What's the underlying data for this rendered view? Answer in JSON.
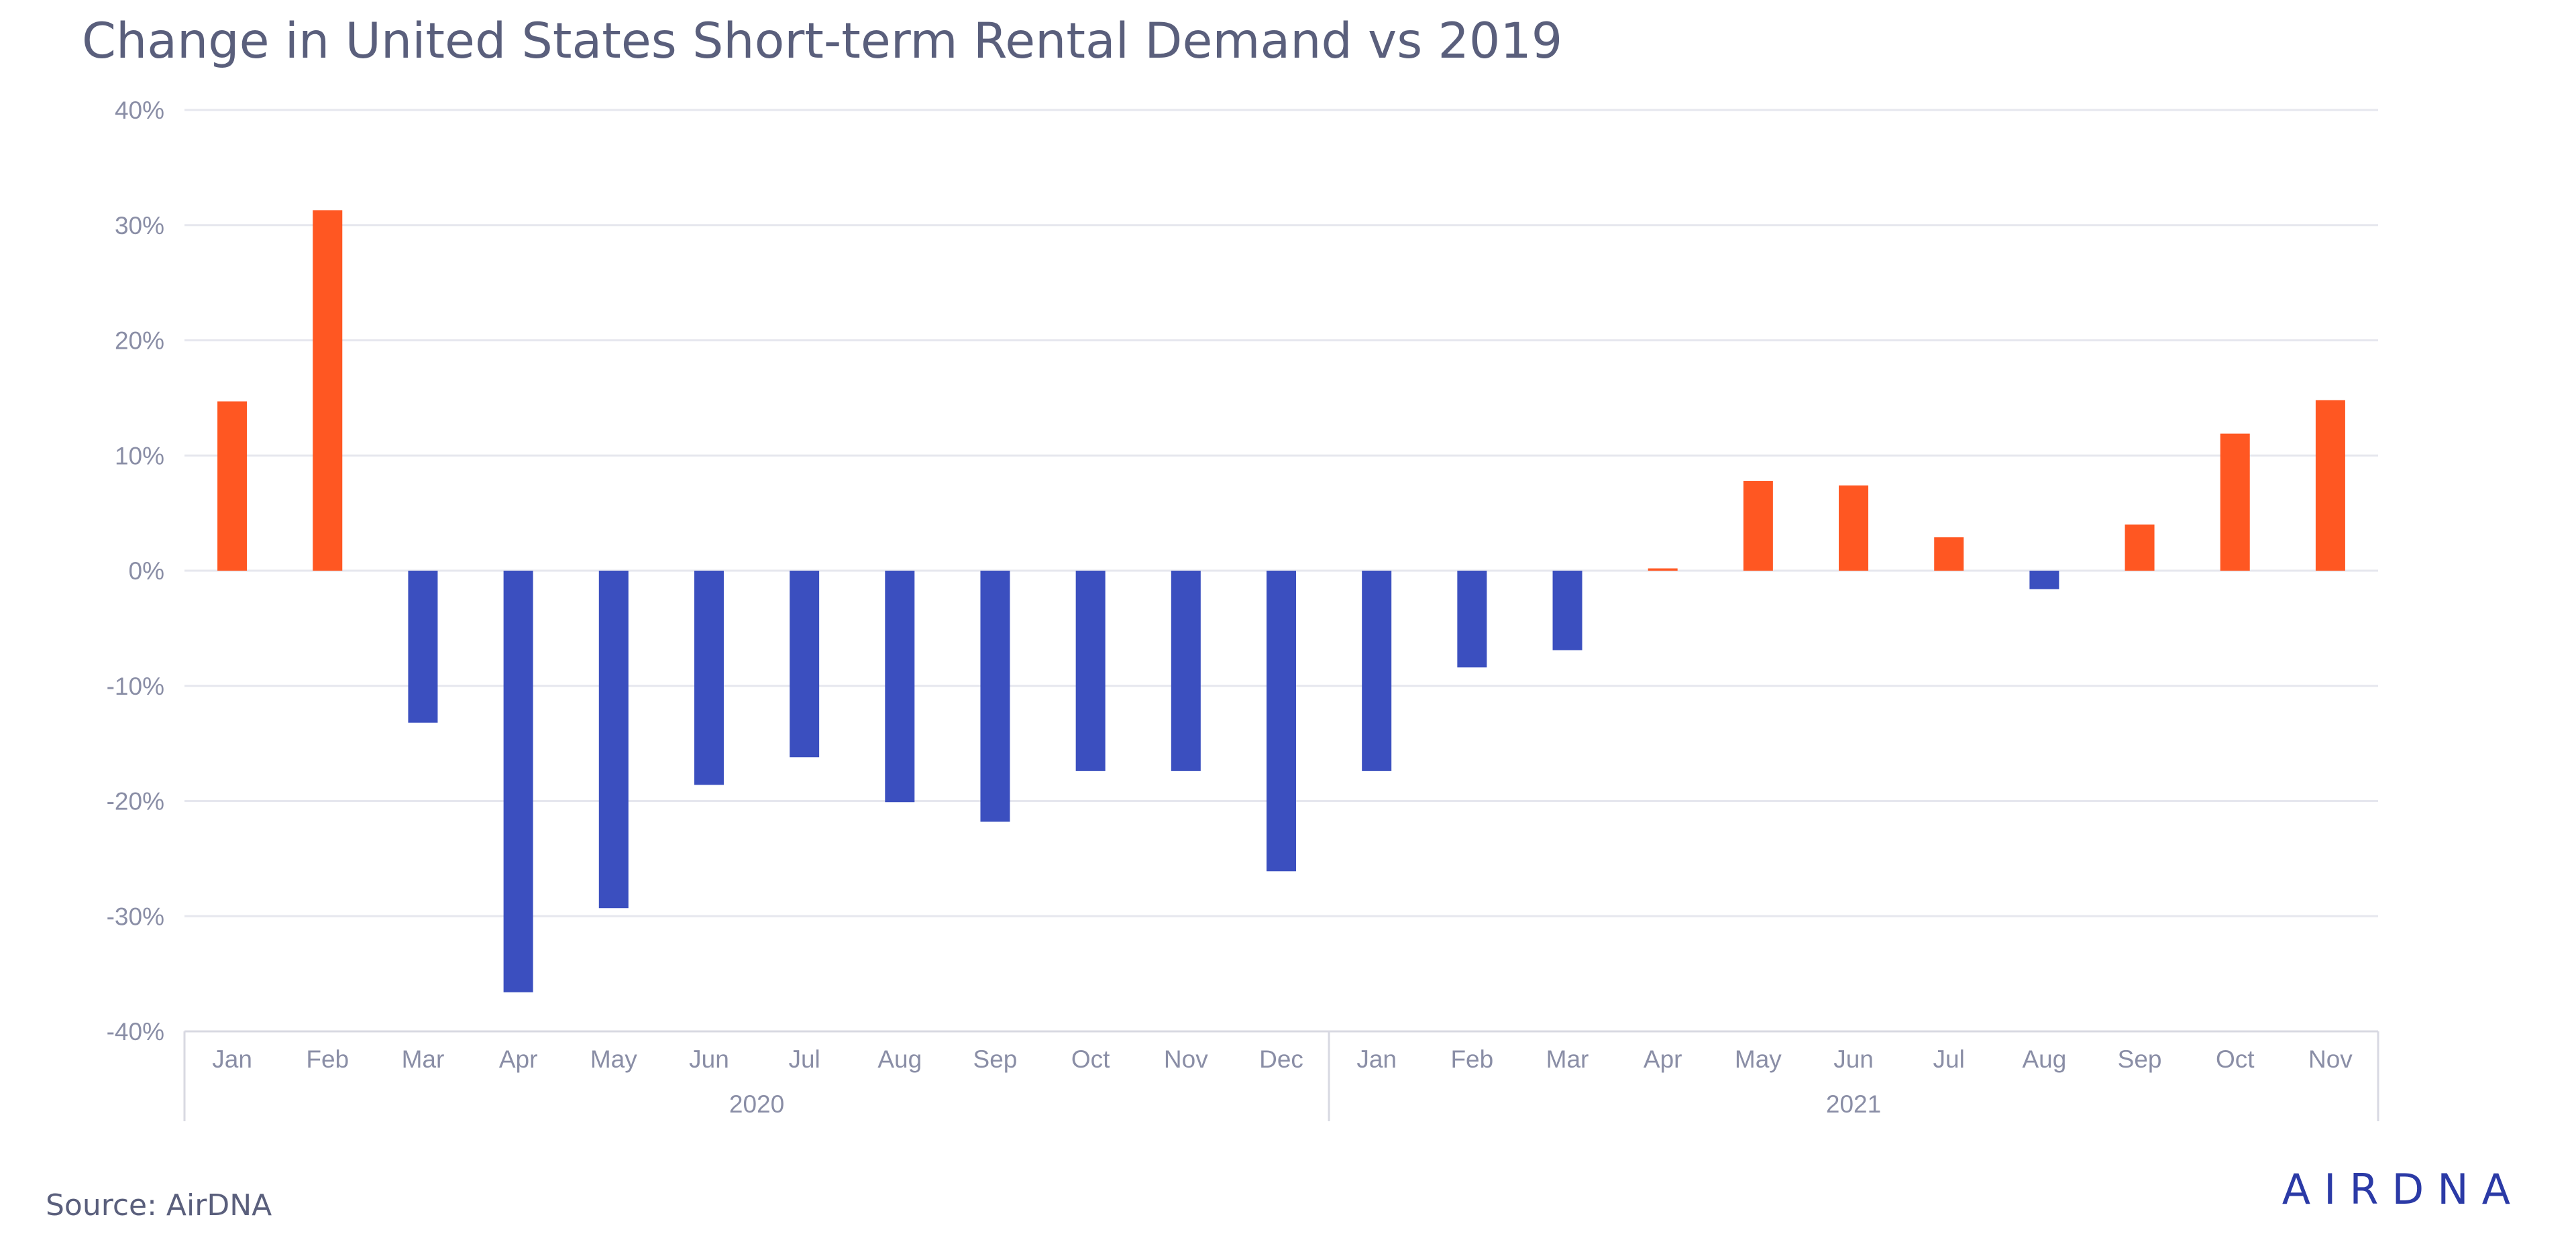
{
  "title": "Change in United States Short-term Rental Demand vs 2019",
  "source": "Source: AirDNA",
  "logo": "AIRDNA",
  "colors": {
    "positive": "#ff5722",
    "negative": "#3b4fbf",
    "logo": "#2b3aa6",
    "text": "#5a5f7c",
    "tick": "#8a8ea6"
  },
  "chart_data": {
    "type": "bar",
    "title": "Change in United States Short-term Rental Demand vs 2019",
    "xlabel": "",
    "ylabel": "",
    "ylim": [
      -40,
      40
    ],
    "y_ticks": [
      40,
      30,
      20,
      10,
      0,
      -10,
      -20,
      -30,
      -40
    ],
    "y_tick_labels": [
      "40%",
      "30%",
      "20%",
      "10%",
      "0%",
      "-10%",
      "-20%",
      "-30%",
      "-40%"
    ],
    "grid": true,
    "legend": "none",
    "categories": [
      "Jan",
      "Feb",
      "Mar",
      "Apr",
      "May",
      "Jun",
      "Jul",
      "Aug",
      "Sep",
      "Oct",
      "Nov",
      "Dec",
      "Jan",
      "Feb",
      "Mar",
      "Apr",
      "May",
      "Jun",
      "Jul",
      "Aug",
      "Sep",
      "Oct",
      "Nov"
    ],
    "groups": [
      {
        "label": "2020",
        "count": 12
      },
      {
        "label": "2021",
        "count": 11
      }
    ],
    "values": [
      14.7,
      31.3,
      -13.2,
      -36.6,
      -29.3,
      -18.6,
      -16.2,
      -20.1,
      -21.8,
      -17.4,
      -17.4,
      -26.1,
      -17.4,
      -8.4,
      -6.9,
      0.2,
      7.8,
      7.4,
      2.9,
      -1.6,
      4.0,
      11.9,
      14.8
    ]
  }
}
